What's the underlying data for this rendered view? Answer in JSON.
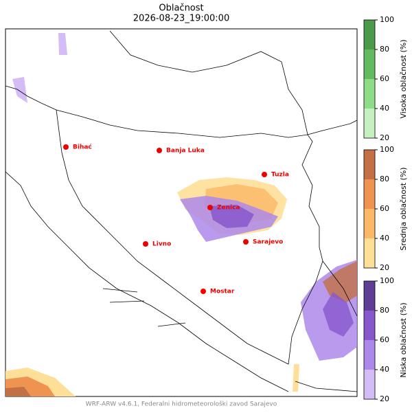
{
  "title": "Oblačnost",
  "subtitle": "2026-08-23_19:00:00",
  "cities": [
    "Bihać",
    "Banja Luka",
    "Tuzla",
    "Zenica",
    "Livno",
    "Sarajevo",
    "Mostar"
  ],
  "colorbars": [
    {
      "label": "Visoka oblačnost (%)",
      "lim": [
        20,
        100
      ],
      "ticks": [
        20,
        40,
        60,
        80,
        100
      ],
      "colors": [
        "#c7f0c0",
        "#8fdc86",
        "#62bb5f",
        "#4a9a4a"
      ]
    },
    {
      "label": "Srednja oblačnost (%)",
      "lim": [
        20,
        100
      ],
      "ticks": [
        20,
        40,
        60,
        80,
        100
      ],
      "colors": [
        "#fddf98",
        "#fbb868",
        "#ee9350",
        "#c27044"
      ]
    },
    {
      "label": "Niska oblačnost (%)",
      "lim": [
        20,
        100
      ],
      "ticks": [
        20,
        40,
        60,
        80,
        100
      ],
      "colors": [
        "#d4bdf6",
        "#ad88ea",
        "#8758cc",
        "#5f3e96"
      ]
    }
  ],
  "footer": "WRF-ARW v4.6.1, Federalni hidrometeorološki zavod Sarajevo"
}
